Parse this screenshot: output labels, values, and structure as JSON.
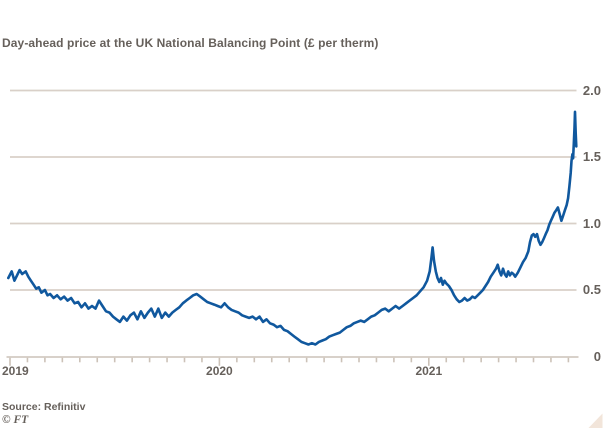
{
  "header": {
    "title": "Day-ahead price at the UK National Balancing Point (£ per therm)"
  },
  "footer": {
    "source": "Source: Refinitiv",
    "credit": "© FT"
  },
  "colors": {
    "background": "#ffffff",
    "line": "#10589e",
    "grid": "#d9d0c8",
    "axis": "#ccc2b8",
    "text": "#66605b",
    "corner_triangle": "#f2e5da"
  },
  "chart_data": {
    "type": "line",
    "title": "Day-ahead price at the UK National Balancing Point (£ per therm)",
    "xlabel": "",
    "ylabel": "£ per therm",
    "ylim": [
      0,
      2.0
    ],
    "grid": "horizontal",
    "legend_position": "none",
    "y_ticks": [
      {
        "value": 0,
        "label": "0"
      },
      {
        "value": 0.5,
        "label": "0.5"
      },
      {
        "value": 1.0,
        "label": "1.0"
      },
      {
        "value": 1.5,
        "label": "1.5"
      },
      {
        "value": 2.0,
        "label": "2.0"
      }
    ],
    "x_year_ticks": [
      {
        "month": 0,
        "label": "2019"
      },
      {
        "month": 12,
        "label": "2020"
      },
      {
        "month": 24,
        "label": "2021"
      }
    ],
    "x_minor_tick_every_months": 1,
    "x_range_months": [
      0,
      32.5
    ],
    "series": [
      {
        "name": "Day-ahead price (£ per therm)",
        "points_months_vs_price": [
          [
            -0.1,
            0.59
          ],
          [
            0.1,
            0.64
          ],
          [
            0.25,
            0.57
          ],
          [
            0.4,
            0.61
          ],
          [
            0.55,
            0.65
          ],
          [
            0.7,
            0.62
          ],
          [
            0.9,
            0.64
          ],
          [
            1.05,
            0.6
          ],
          [
            1.2,
            0.57
          ],
          [
            1.35,
            0.54
          ],
          [
            1.5,
            0.51
          ],
          [
            1.65,
            0.52
          ],
          [
            1.8,
            0.48
          ],
          [
            2.0,
            0.5
          ],
          [
            2.15,
            0.46
          ],
          [
            2.3,
            0.47
          ],
          [
            2.5,
            0.44
          ],
          [
            2.7,
            0.46
          ],
          [
            2.9,
            0.43
          ],
          [
            3.1,
            0.45
          ],
          [
            3.3,
            0.42
          ],
          [
            3.5,
            0.44
          ],
          [
            3.7,
            0.4
          ],
          [
            3.9,
            0.41
          ],
          [
            4.1,
            0.37
          ],
          [
            4.3,
            0.4
          ],
          [
            4.5,
            0.36
          ],
          [
            4.7,
            0.38
          ],
          [
            4.9,
            0.36
          ],
          [
            5.1,
            0.42
          ],
          [
            5.3,
            0.38
          ],
          [
            5.5,
            0.34
          ],
          [
            5.7,
            0.33
          ],
          [
            5.9,
            0.3
          ],
          [
            6.1,
            0.28
          ],
          [
            6.3,
            0.26
          ],
          [
            6.5,
            0.3
          ],
          [
            6.7,
            0.27
          ],
          [
            6.9,
            0.31
          ],
          [
            7.1,
            0.33
          ],
          [
            7.3,
            0.28
          ],
          [
            7.5,
            0.34
          ],
          [
            7.7,
            0.29
          ],
          [
            7.9,
            0.33
          ],
          [
            8.1,
            0.36
          ],
          [
            8.3,
            0.3
          ],
          [
            8.5,
            0.36
          ],
          [
            8.7,
            0.29
          ],
          [
            8.9,
            0.33
          ],
          [
            9.1,
            0.3
          ],
          [
            9.3,
            0.33
          ],
          [
            9.5,
            0.35
          ],
          [
            9.7,
            0.37
          ],
          [
            9.9,
            0.4
          ],
          [
            10.1,
            0.42
          ],
          [
            10.3,
            0.44
          ],
          [
            10.5,
            0.46
          ],
          [
            10.7,
            0.47
          ],
          [
            10.9,
            0.45
          ],
          [
            11.1,
            0.43
          ],
          [
            11.3,
            0.41
          ],
          [
            11.5,
            0.4
          ],
          [
            11.7,
            0.39
          ],
          [
            11.9,
            0.38
          ],
          [
            12.1,
            0.37
          ],
          [
            12.3,
            0.4
          ],
          [
            12.5,
            0.37
          ],
          [
            12.7,
            0.35
          ],
          [
            12.9,
            0.34
          ],
          [
            13.1,
            0.33
          ],
          [
            13.3,
            0.31
          ],
          [
            13.5,
            0.3
          ],
          [
            13.7,
            0.29
          ],
          [
            13.9,
            0.3
          ],
          [
            14.1,
            0.28
          ],
          [
            14.3,
            0.3
          ],
          [
            14.5,
            0.26
          ],
          [
            14.7,
            0.28
          ],
          [
            14.9,
            0.25
          ],
          [
            15.1,
            0.24
          ],
          [
            15.3,
            0.22
          ],
          [
            15.5,
            0.23
          ],
          [
            15.7,
            0.2
          ],
          [
            15.9,
            0.19
          ],
          [
            16.1,
            0.17
          ],
          [
            16.3,
            0.15
          ],
          [
            16.5,
            0.13
          ],
          [
            16.7,
            0.11
          ],
          [
            16.9,
            0.1
          ],
          [
            17.1,
            0.09
          ],
          [
            17.3,
            0.1
          ],
          [
            17.5,
            0.09
          ],
          [
            17.7,
            0.11
          ],
          [
            17.9,
            0.12
          ],
          [
            18.1,
            0.13
          ],
          [
            18.3,
            0.15
          ],
          [
            18.5,
            0.16
          ],
          [
            18.7,
            0.17
          ],
          [
            18.9,
            0.18
          ],
          [
            19.1,
            0.2
          ],
          [
            19.3,
            0.22
          ],
          [
            19.5,
            0.23
          ],
          [
            19.7,
            0.25
          ],
          [
            19.9,
            0.26
          ],
          [
            20.1,
            0.27
          ],
          [
            20.3,
            0.26
          ],
          [
            20.5,
            0.28
          ],
          [
            20.7,
            0.3
          ],
          [
            20.9,
            0.31
          ],
          [
            21.1,
            0.33
          ],
          [
            21.3,
            0.35
          ],
          [
            21.5,
            0.36
          ],
          [
            21.7,
            0.34
          ],
          [
            21.9,
            0.36
          ],
          [
            22.1,
            0.38
          ],
          [
            22.3,
            0.36
          ],
          [
            22.5,
            0.38
          ],
          [
            22.7,
            0.4
          ],
          [
            22.9,
            0.42
          ],
          [
            23.1,
            0.44
          ],
          [
            23.3,
            0.46
          ],
          [
            23.5,
            0.49
          ],
          [
            23.7,
            0.52
          ],
          [
            23.9,
            0.57
          ],
          [
            24.05,
            0.64
          ],
          [
            24.15,
            0.74
          ],
          [
            24.22,
            0.82
          ],
          [
            24.3,
            0.72
          ],
          [
            24.4,
            0.64
          ],
          [
            24.5,
            0.59
          ],
          [
            24.6,
            0.56
          ],
          [
            24.7,
            0.59
          ],
          [
            24.8,
            0.54
          ],
          [
            24.9,
            0.57
          ],
          [
            25.0,
            0.55
          ],
          [
            25.15,
            0.53
          ],
          [
            25.3,
            0.5
          ],
          [
            25.45,
            0.46
          ],
          [
            25.6,
            0.43
          ],
          [
            25.75,
            0.41
          ],
          [
            25.9,
            0.42
          ],
          [
            26.05,
            0.44
          ],
          [
            26.2,
            0.42
          ],
          [
            26.35,
            0.43
          ],
          [
            26.5,
            0.45
          ],
          [
            26.65,
            0.44
          ],
          [
            26.8,
            0.46
          ],
          [
            26.95,
            0.48
          ],
          [
            27.1,
            0.5
          ],
          [
            27.25,
            0.53
          ],
          [
            27.4,
            0.56
          ],
          [
            27.55,
            0.6
          ],
          [
            27.7,
            0.63
          ],
          [
            27.85,
            0.66
          ],
          [
            27.95,
            0.69
          ],
          [
            28.05,
            0.64
          ],
          [
            28.15,
            0.61
          ],
          [
            28.25,
            0.66
          ],
          [
            28.35,
            0.62
          ],
          [
            28.45,
            0.6
          ],
          [
            28.55,
            0.64
          ],
          [
            28.65,
            0.61
          ],
          [
            28.75,
            0.63
          ],
          [
            28.85,
            0.62
          ],
          [
            28.95,
            0.6
          ],
          [
            29.1,
            0.63
          ],
          [
            29.25,
            0.67
          ],
          [
            29.4,
            0.71
          ],
          [
            29.55,
            0.74
          ],
          [
            29.7,
            0.79
          ],
          [
            29.8,
            0.86
          ],
          [
            29.9,
            0.91
          ],
          [
            30.0,
            0.92
          ],
          [
            30.1,
            0.9
          ],
          [
            30.2,
            0.92
          ],
          [
            30.3,
            0.87
          ],
          [
            30.4,
            0.84
          ],
          [
            30.5,
            0.86
          ],
          [
            30.6,
            0.89
          ],
          [
            30.7,
            0.92
          ],
          [
            30.8,
            0.95
          ],
          [
            30.9,
            0.99
          ],
          [
            31.0,
            1.02
          ],
          [
            31.1,
            1.05
          ],
          [
            31.2,
            1.08
          ],
          [
            31.3,
            1.1
          ],
          [
            31.4,
            1.12
          ],
          [
            31.5,
            1.07
          ],
          [
            31.6,
            1.02
          ],
          [
            31.7,
            1.06
          ],
          [
            31.8,
            1.1
          ],
          [
            31.9,
            1.14
          ],
          [
            31.98,
            1.19
          ],
          [
            32.06,
            1.28
          ],
          [
            32.13,
            1.38
          ],
          [
            32.18,
            1.47
          ],
          [
            32.23,
            1.52
          ],
          [
            32.27,
            1.49
          ],
          [
            32.31,
            1.6
          ],
          [
            32.35,
            1.72
          ],
          [
            32.38,
            1.84
          ],
          [
            32.42,
            1.68
          ],
          [
            32.45,
            1.58
          ]
        ]
      }
    ]
  }
}
